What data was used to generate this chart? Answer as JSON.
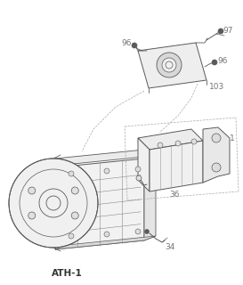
{
  "background_color": "#f5f5f5",
  "outline_color": "#5a5a5a",
  "text_color": "#777777",
  "label_ATH1": "ATH-1",
  "label_97": "97",
  "label_96a": "96",
  "label_96b": "96",
  "label_103": "103",
  "label_36": "36",
  "label_34": "34",
  "label_1": "1",
  "figsize": [
    2.73,
    3.2
  ],
  "dpi": 100
}
